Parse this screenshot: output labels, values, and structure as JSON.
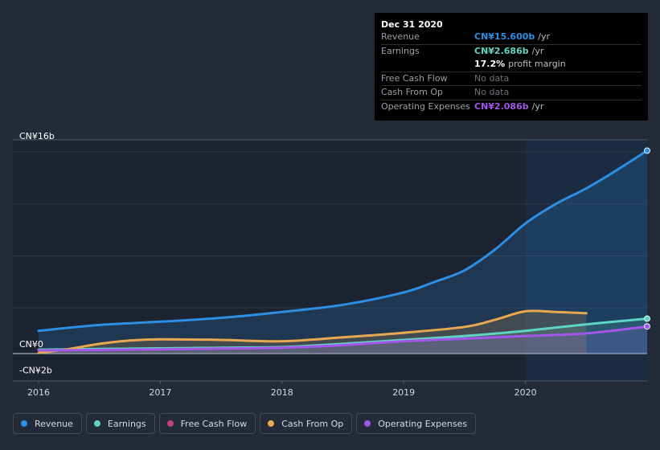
{
  "tooltip": {
    "date": "Dec 31 2020",
    "rows": {
      "revenue": {
        "label": "Revenue",
        "value": "CN¥15.600b",
        "unit": "/yr",
        "color": "#2c8fe3"
      },
      "earnings": {
        "label": "Earnings",
        "value": "CN¥2.686b",
        "unit": "/yr",
        "color": "#5fd4c4"
      },
      "profit_margin": {
        "value": "17.2%",
        "text": "profit margin"
      },
      "fcf": {
        "label": "Free Cash Flow",
        "value": "No data"
      },
      "cfo": {
        "label": "Cash From Op",
        "value": "No data"
      },
      "opex": {
        "label": "Operating Expenses",
        "value": "CN¥2.086b",
        "unit": "/yr",
        "color": "#a356ea"
      }
    }
  },
  "legend": {
    "revenue": {
      "label": "Revenue",
      "color": "#2c8fe3"
    },
    "earnings": {
      "label": "Earnings",
      "color": "#5fd4c4"
    },
    "fcf": {
      "label": "Free Cash Flow",
      "color": "#c2427a"
    },
    "cfo": {
      "label": "Cash From Op",
      "color": "#e9a84f"
    },
    "opex": {
      "label": "Operating Expenses",
      "color": "#a356ea"
    }
  },
  "chart_data": {
    "type": "line",
    "title": "",
    "xlabel": "",
    "ylabel": "",
    "unit": "CN¥ billions",
    "xlim": [
      2016.0,
      2021.0
    ],
    "ylim": [
      -2,
      16
    ],
    "y_tick_labels": [
      {
        "value": 16,
        "label": "CN¥16b"
      },
      {
        "value": 0,
        "label": "CN¥0"
      },
      {
        "value": -2,
        "label": "-CN¥2b"
      }
    ],
    "x_tick_labels": [
      {
        "value": 2016.0,
        "label": "2016"
      },
      {
        "value": 2017.0,
        "label": "2017"
      },
      {
        "value": 2018.0,
        "label": "2018"
      },
      {
        "value": 2019.0,
        "label": "2019"
      },
      {
        "value": 2020.0,
        "label": "2020"
      }
    ],
    "highlight_start": 2020.0,
    "series": [
      {
        "name": "Revenue",
        "color": "#2c8fe3",
        "area": true,
        "end_marker": true,
        "x": [
          2016.0,
          2016.5,
          2017.0,
          2017.5,
          2018.0,
          2018.5,
          2019.0,
          2019.25,
          2019.5,
          2019.75,
          2020.0,
          2020.25,
          2020.5,
          2020.75,
          2021.0
        ],
        "y": [
          1.75,
          2.2,
          2.45,
          2.75,
          3.2,
          3.75,
          4.7,
          5.5,
          6.4,
          8.0,
          10.0,
          11.5,
          12.7,
          14.1,
          15.6
        ]
      },
      {
        "name": "Earnings",
        "color": "#5fd4c4",
        "area": true,
        "end_marker": true,
        "x": [
          2016.0,
          2016.5,
          2017.0,
          2017.5,
          2018.0,
          2018.5,
          2019.0,
          2019.5,
          2020.0,
          2020.5,
          2021.0
        ],
        "y": [
          0.3,
          0.35,
          0.4,
          0.45,
          0.5,
          0.75,
          1.05,
          1.35,
          1.75,
          2.25,
          2.686
        ]
      },
      {
        "name": "Cash From Op",
        "color": "#e9a84f",
        "area": true,
        "end_marker": false,
        "x": [
          2016.0,
          2016.25,
          2016.5,
          2016.75,
          2017.0,
          2017.5,
          2018.0,
          2018.5,
          2019.0,
          2019.5,
          2019.75,
          2020.0,
          2020.25,
          2020.5
        ],
        "y": [
          0.05,
          0.35,
          0.75,
          1.0,
          1.1,
          1.05,
          0.95,
          1.25,
          1.6,
          2.05,
          2.6,
          3.25,
          3.2,
          3.1
        ]
      },
      {
        "name": "Operating Expenses",
        "color": "#a356ea",
        "area": true,
        "end_marker": true,
        "x": [
          2016.0,
          2016.5,
          2017.0,
          2017.5,
          2018.0,
          2018.5,
          2019.0,
          2019.5,
          2020.0,
          2020.5,
          2021.0
        ],
        "y": [
          0.25,
          0.28,
          0.33,
          0.38,
          0.45,
          0.65,
          0.95,
          1.15,
          1.35,
          1.55,
          2.086
        ]
      }
    ]
  }
}
